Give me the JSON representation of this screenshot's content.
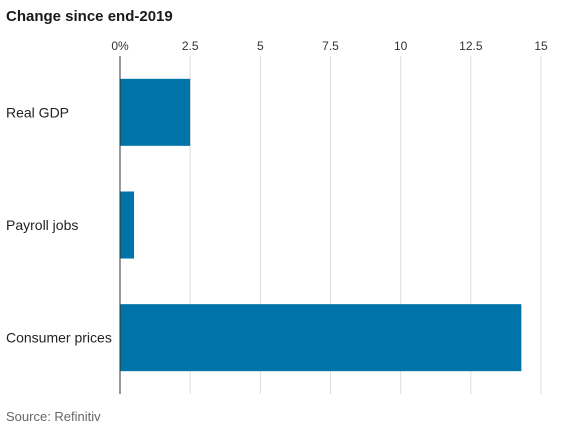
{
  "title": "Change since end-2019",
  "source": "Source: Refinitiv",
  "chart_data": {
    "type": "bar",
    "orientation": "horizontal",
    "title": "Change since end-2019",
    "categories": [
      "Real GDP",
      "Payroll jobs",
      "Consumer prices"
    ],
    "values": [
      2.5,
      0.5,
      14.3
    ],
    "xlim": [
      0,
      15
    ],
    "xticks": [
      0,
      2.5,
      5,
      7.5,
      10,
      12.5,
      15
    ],
    "xtick_labels": [
      "0%",
      "2.5",
      "5",
      "7.5",
      "10",
      "12.5",
      "15"
    ],
    "xaxis_position": "top",
    "grid": true,
    "bar_color": "#0073a8"
  }
}
